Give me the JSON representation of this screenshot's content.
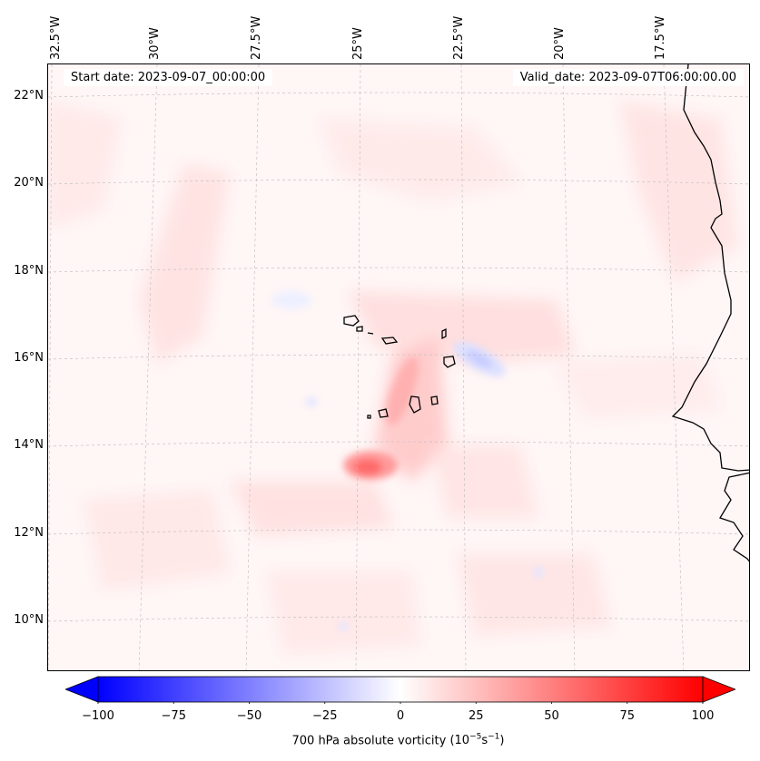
{
  "map": {
    "title_left": "Start date: 2023-09-07_00:00:00",
    "title_right": "Valid_date: 2023-09-07T06:00:00.00",
    "variable": "700 hPa absolute vorticity",
    "units_prefix": "(10",
    "units_exp1": "−5",
    "units_mid": "s",
    "units_exp2": "−1",
    "units_suffix": ")",
    "lon_labels": [
      "32.5°W",
      "30°W",
      "27.5°W",
      "25°W",
      "22.5°W",
      "20°W",
      "17.5°W"
    ],
    "lat_labels": [
      "22°N",
      "20°N",
      "18°N",
      "16°N",
      "14°N",
      "12°N",
      "10°N"
    ],
    "colorbar": {
      "min": -100,
      "max": 100,
      "ticks": [
        "−100",
        "−75",
        "−50",
        "−25",
        "0",
        "25",
        "50",
        "75",
        "100"
      ],
      "tick_values": [
        -100,
        -75,
        -50,
        -25,
        0,
        25,
        50,
        75,
        100
      ],
      "colors": {
        "negative": "#0000ff",
        "neutral": "#ffffff",
        "positive": "#ff0000"
      }
    },
    "features": {
      "max_vorticity_center": {
        "lon": -25.0,
        "lat": 13.6,
        "value": 45
      },
      "negative_center": {
        "lon": -22.3,
        "lat": 15.8,
        "value": -12
      }
    }
  }
}
